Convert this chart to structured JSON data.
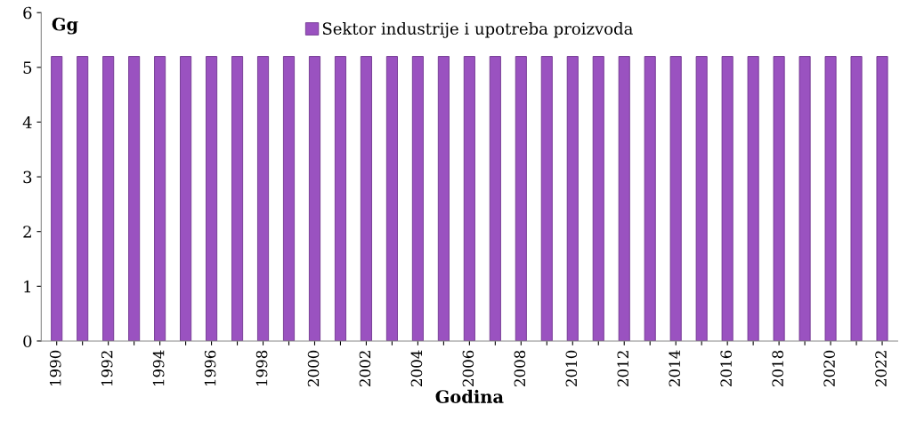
{
  "chart_data": {
    "type": "bar",
    "xlabel": "Godina",
    "ylabel": "Gg",
    "categories": [
      "1990",
      null,
      "1992",
      null,
      "1994",
      null,
      "1996",
      null,
      "1998",
      null,
      "2000",
      null,
      "2002",
      null,
      "2004",
      null,
      "2006",
      null,
      "2008",
      null,
      "2010",
      null,
      "2012",
      null,
      "2014",
      null,
      "2016",
      null,
      "2018",
      null,
      "2020",
      null,
      "2022"
    ],
    "series": [
      {
        "name": "Sektor industrije i upotreba proizvoda",
        "color": "#9a52c0",
        "values": [
          5.2,
          5.2,
          5.2,
          5.2,
          5.2,
          5.2,
          5.2,
          5.2,
          5.2,
          5.2,
          5.2,
          5.2,
          5.2,
          5.2,
          5.2,
          5.2,
          5.2,
          5.2,
          5.2,
          5.2,
          5.2,
          5.2,
          5.2,
          5.2,
          5.2,
          5.2,
          5.2,
          5.2,
          5.2,
          5.2,
          5.2,
          5.2,
          5.2
        ]
      }
    ],
    "ylim": [
      0,
      6
    ],
    "yticks": [
      0,
      1,
      2,
      3,
      4,
      5,
      6
    ],
    "grid": false,
    "legend": "top"
  }
}
